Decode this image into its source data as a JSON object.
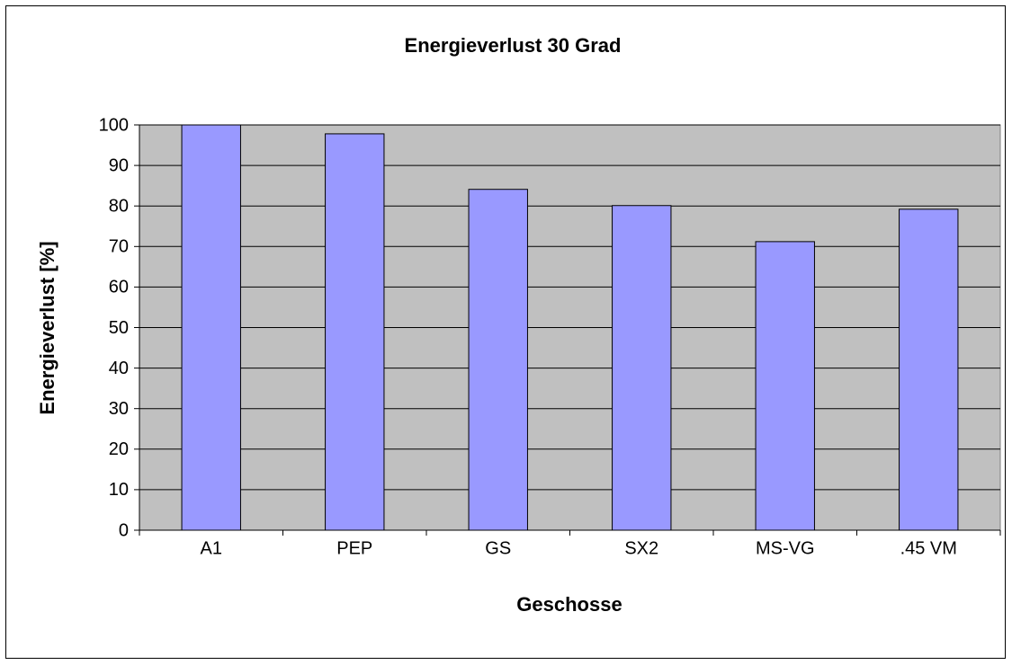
{
  "chart_data": {
    "type": "bar",
    "title": "Energieverlust 30 Grad",
    "x_label": "Geschosse",
    "y_label": "Energieverlust [%]",
    "categories": [
      "A1",
      "PEP",
      "GS",
      "SX2",
      "MS-VG",
      ".45 VM"
    ],
    "values": [
      100,
      97.8,
      84.1,
      80.1,
      71.2,
      79.2
    ],
    "color": "#9999ff",
    "plot_background": "#c0c0c0",
    "ylim": [
      0,
      100
    ],
    "yticks": [
      0,
      10,
      20,
      30,
      40,
      50,
      60,
      70,
      80,
      90,
      100
    ],
    "grid": true
  }
}
